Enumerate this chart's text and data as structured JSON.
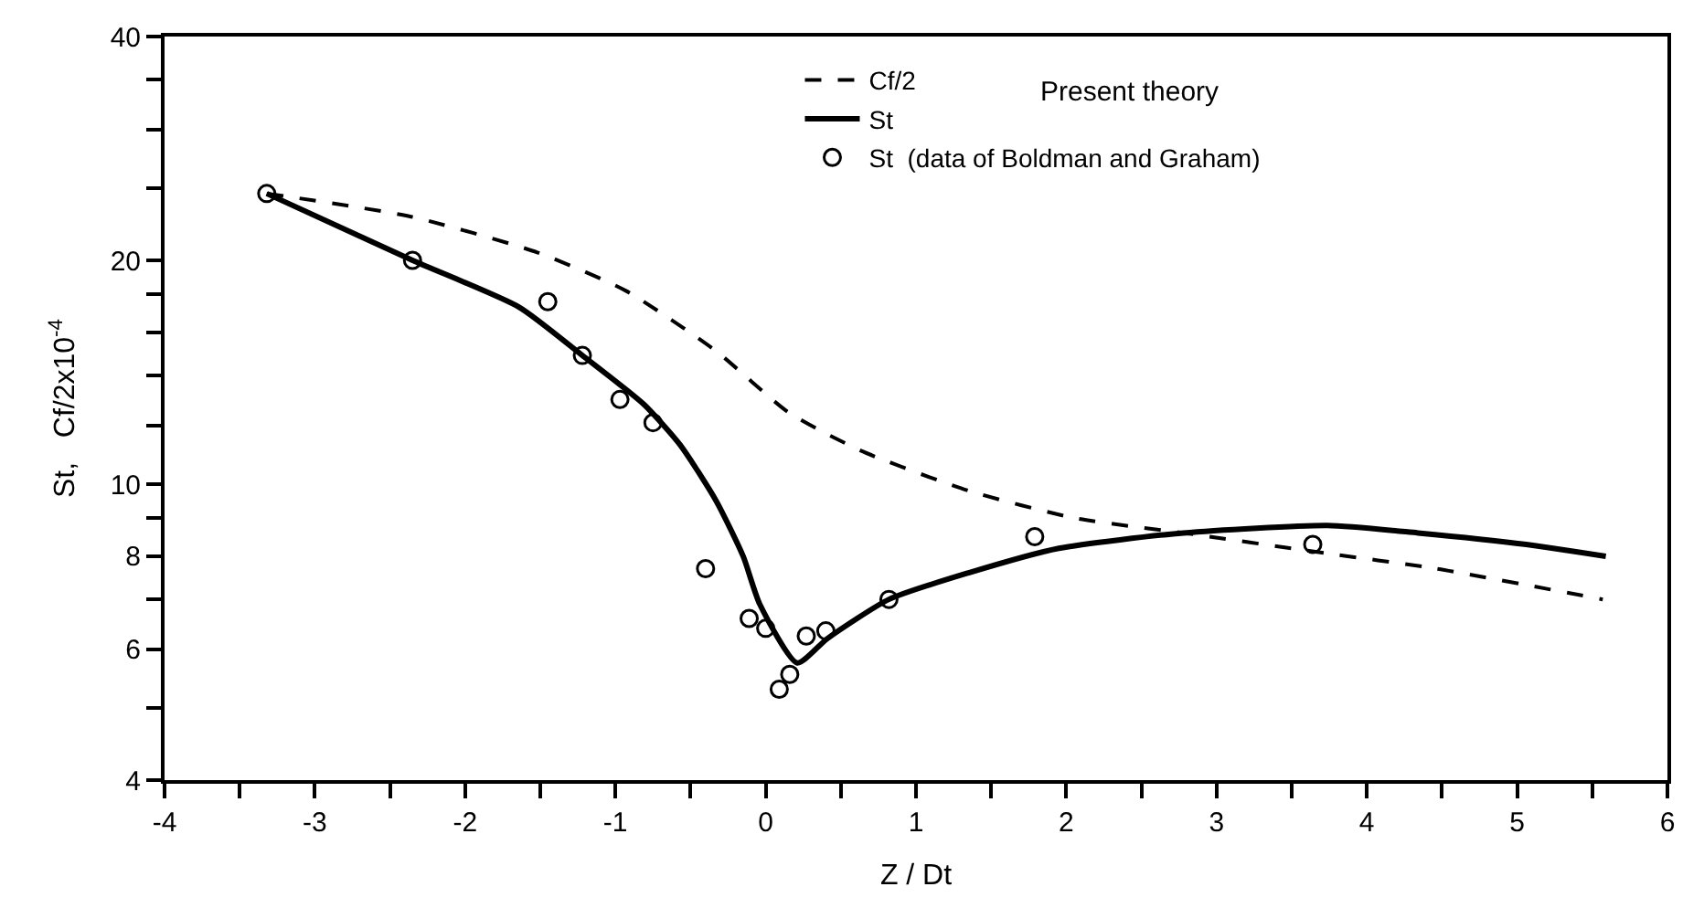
{
  "chart_data": {
    "type": "line",
    "xlabel": "Z / Dt",
    "ylabel": "St,   Cf/2x10$^{-4}$",
    "log": "y",
    "legend": "top right",
    "xlim": [
      -4,
      6
    ],
    "xticks": [
      -4,
      {
        "value": -3.5,
        "label": null
      },
      -3,
      {
        "value": -2.5,
        "label": null
      },
      -2,
      {
        "value": -1.5,
        "label": null
      },
      -1,
      {
        "value": -0.5,
        "label": null
      },
      0,
      {
        "value": 0.5,
        "label": null
      },
      1,
      {
        "value": 1.5,
        "label": null
      },
      2,
      {
        "value": 2.5,
        "label": null
      },
      3,
      {
        "value": 3.5,
        "label": null
      },
      4,
      {
        "value": 4.5,
        "label": null
      },
      5,
      {
        "value": 5.5,
        "label": null
      },
      6
    ],
    "ylim": [
      4,
      40
    ],
    "yticks": [
      4,
      {
        "value": 5,
        "label": null
      },
      6,
      {
        "value": 7,
        "label": null
      },
      8,
      {
        "value": 9,
        "label": null
      },
      10,
      {
        "value": 12,
        "label": null
      },
      {
        "value": 14,
        "label": null
      },
      {
        "value": 16,
        "label": null
      },
      {
        "value": 18,
        "label": null
      },
      20,
      {
        "value": 25,
        "label": null
      },
      {
        "value": 30,
        "label": null
      },
      {
        "value": 35,
        "label": null
      },
      40
    ],
    "annotations": [
      "Present theory"
    ],
    "series": [
      {
        "name": "Cf/2",
        "line_style": "dashed",
        "marker": "none",
        "color": "#000000",
        "x": [
          -3.32,
          -2.36,
          -1.52,
          -0.93,
          -0.33,
          0.15,
          0.63,
          1.35,
          2.06,
          2.78,
          3.68,
          4.46,
          5.57
        ],
        "values": [
          24.6,
          22.9,
          20.5,
          18.2,
          15.1,
          12.5,
          11.1,
          9.8,
          9.0,
          8.6,
          8.1,
          7.7,
          7.0
        ]
      },
      {
        "name": "St",
        "line_style": "solid",
        "marker": "none",
        "color": "#000000",
        "x": [
          -3.32,
          -2.35,
          -1.64,
          -1.22,
          -0.81,
          -0.57,
          -0.33,
          -0.15,
          -0.04,
          0.21,
          0.41,
          0.82,
          1.35,
          1.95,
          2.78,
          3.74,
          4.34,
          5.06,
          5.59
        ],
        "values": [
          24.6,
          20,
          17.3,
          14.9,
          12.8,
          11.3,
          9.5,
          8.0,
          6.9,
          5.75,
          6.2,
          7.0,
          7.6,
          8.2,
          8.6,
          8.8,
          8.6,
          8.3,
          8.0
        ]
      },
      {
        "name": "St  (data of Boldman and Graham)",
        "type": "scatter",
        "marker": "circle",
        "color": "#000000",
        "x": [
          -3.32,
          -2.35,
          -1.45,
          -1.22,
          -0.97,
          -0.75,
          -0.4,
          -0.11,
          0.0,
          0.09,
          0.16,
          0.27,
          0.4,
          0.82,
          1.79,
          3.64
        ],
        "values": [
          24.6,
          20,
          17.6,
          14.9,
          13.0,
          12.1,
          7.7,
          6.6,
          6.4,
          5.3,
          5.55,
          6.25,
          6.35,
          7.0,
          8.5,
          8.3
        ]
      }
    ]
  }
}
